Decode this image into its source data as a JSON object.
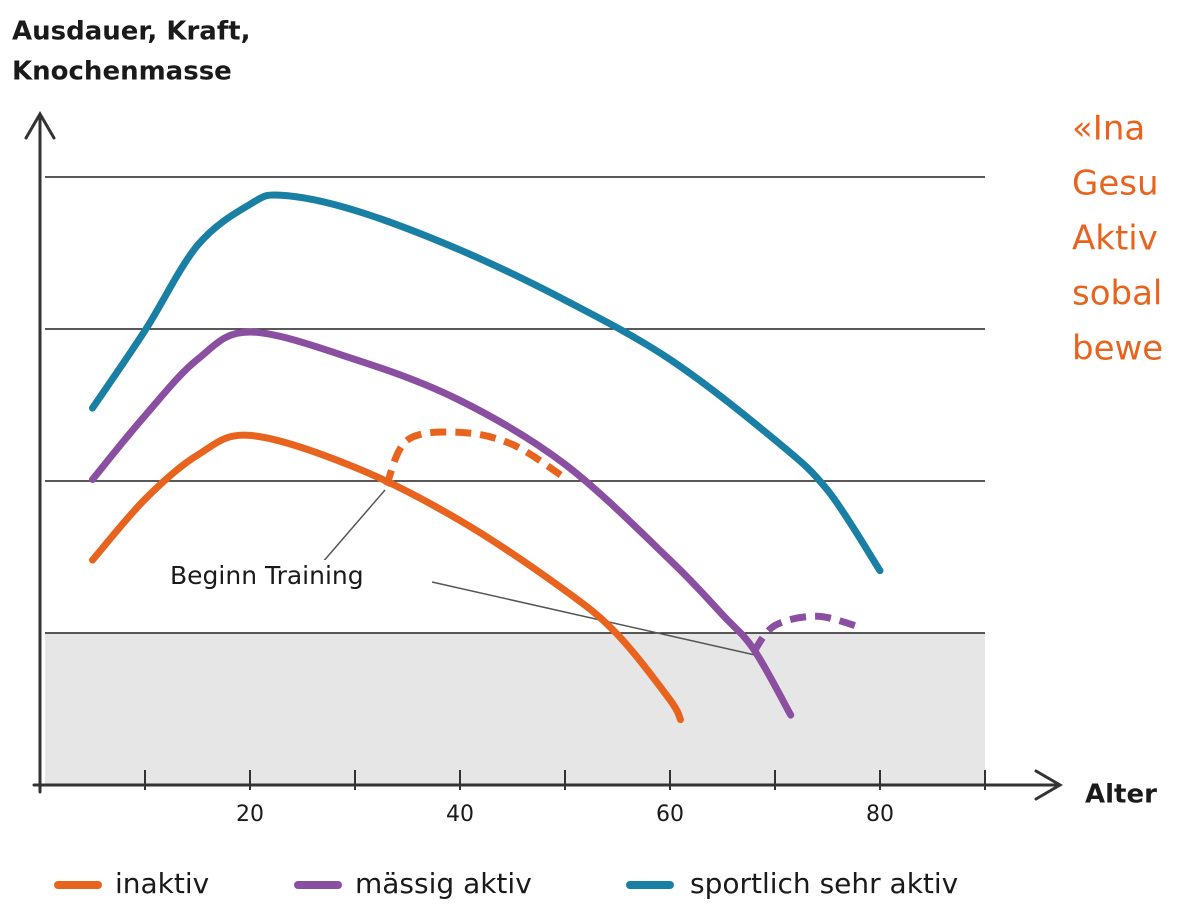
{
  "chart_data": {
    "type": "line",
    "title": [
      "Ausdauer, Kraft,",
      "Knochenmasse"
    ],
    "x_label": "Alter",
    "xlim": [
      0,
      90
    ],
    "xticks": [
      20,
      40,
      60,
      80
    ],
    "xminor_ticks": [
      10,
      30,
      50,
      70,
      90
    ],
    "ylim": [
      0,
      4
    ],
    "grid_lines": [
      1,
      2,
      3,
      4
    ],
    "shaded_below": 1,
    "annotation": "Beginn Training",
    "side_note": [
      "«Ina",
      "Gesu",
      "Aktiv",
      "sobal",
      "bewe"
    ],
    "series": [
      {
        "name": "inaktiv",
        "color": "#e8641e",
        "x": [
          5,
          10,
          15,
          20,
          30,
          40,
          50,
          55,
          60,
          61
        ],
        "values": [
          1.48,
          1.88,
          2.17,
          2.3,
          2.09,
          1.74,
          1.28,
          0.99,
          0.56,
          0.43
        ],
        "training": {
          "x": [
            33,
            35,
            40,
            45,
            50
          ],
          "values": [
            1.97,
            2.27,
            2.32,
            2.24,
            2.02
          ]
        }
      },
      {
        "name": "mässig aktiv",
        "color": "#8a4fa0",
        "x": [
          5,
          10,
          15,
          20,
          30,
          40,
          50,
          60,
          65,
          68,
          71.5
        ],
        "values": [
          2.01,
          2.43,
          2.8,
          2.98,
          2.8,
          2.53,
          2.11,
          1.48,
          1.12,
          0.89,
          0.46
        ],
        "training": {
          "x": [
            68,
            70,
            74,
            78
          ],
          "values": [
            0.88,
            1.05,
            1.11,
            1.04
          ]
        }
      },
      {
        "name": "sportlich sehr aktiv",
        "color": "#1a7fa5",
        "x": [
          5,
          10,
          15,
          20,
          23,
          30,
          40,
          50,
          60,
          70,
          75,
          80
        ],
        "values": [
          2.48,
          2.99,
          3.55,
          3.82,
          3.88,
          3.78,
          3.52,
          3.19,
          2.8,
          2.27,
          1.94,
          1.41
        ]
      }
    ]
  }
}
